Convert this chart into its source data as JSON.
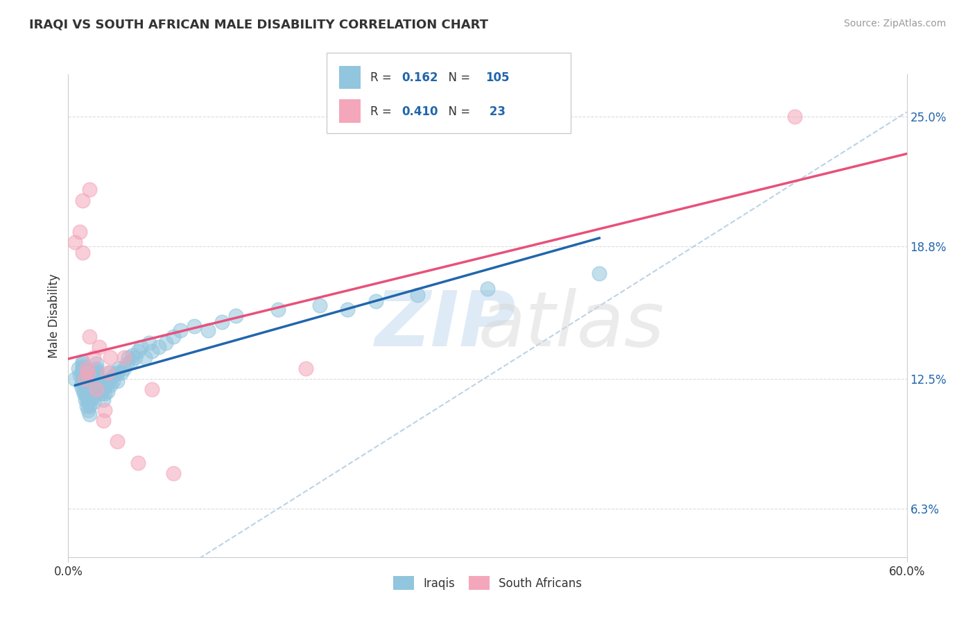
{
  "title": "IRAQI VS SOUTH AFRICAN MALE DISABILITY CORRELATION CHART",
  "source": "Source: ZipAtlas.com",
  "ylabel": "Male Disability",
  "xlim": [
    0.0,
    0.6
  ],
  "ylim": [
    0.04,
    0.27
  ],
  "ytick_labels_right": [
    "6.3%",
    "12.5%",
    "18.8%",
    "25.0%"
  ],
  "ytick_positions_right": [
    0.063,
    0.125,
    0.188,
    0.25
  ],
  "iraqis_color": "#92c5de",
  "south_africans_color": "#f4a6bb",
  "trendline_iraqis_color": "#2166ac",
  "trendline_sa_color": "#e8507a",
  "dashed_line_color": "#aac8e0",
  "iraqis_x": [
    0.005,
    0.007,
    0.008,
    0.009,
    0.01,
    0.01,
    0.01,
    0.01,
    0.01,
    0.01,
    0.01,
    0.01,
    0.01,
    0.01,
    0.01,
    0.011,
    0.011,
    0.012,
    0.012,
    0.012,
    0.012,
    0.012,
    0.013,
    0.013,
    0.013,
    0.014,
    0.014,
    0.014,
    0.015,
    0.015,
    0.015,
    0.015,
    0.015,
    0.015,
    0.015,
    0.016,
    0.016,
    0.016,
    0.016,
    0.017,
    0.017,
    0.018,
    0.018,
    0.018,
    0.019,
    0.02,
    0.02,
    0.02,
    0.02,
    0.02,
    0.02,
    0.02,
    0.02,
    0.02,
    0.02,
    0.022,
    0.022,
    0.023,
    0.023,
    0.025,
    0.025,
    0.026,
    0.027,
    0.028,
    0.028,
    0.03,
    0.03,
    0.03,
    0.032,
    0.033,
    0.035,
    0.035,
    0.036,
    0.038,
    0.04,
    0.042,
    0.043,
    0.045,
    0.046,
    0.048,
    0.05,
    0.052,
    0.055,
    0.058,
    0.06,
    0.065,
    0.07,
    0.075,
    0.08,
    0.09,
    0.1,
    0.11,
    0.12,
    0.15,
    0.18,
    0.2,
    0.22,
    0.25,
    0.3,
    0.38
  ],
  "iraqis_y": [
    0.125,
    0.13,
    0.127,
    0.122,
    0.12,
    0.124,
    0.126,
    0.128,
    0.129,
    0.13,
    0.131,
    0.132,
    0.125,
    0.127,
    0.133,
    0.118,
    0.122,
    0.115,
    0.118,
    0.12,
    0.124,
    0.126,
    0.112,
    0.116,
    0.119,
    0.11,
    0.114,
    0.118,
    0.108,
    0.112,
    0.115,
    0.119,
    0.122,
    0.125,
    0.128,
    0.115,
    0.119,
    0.122,
    0.126,
    0.118,
    0.122,
    0.114,
    0.118,
    0.122,
    0.12,
    0.118,
    0.122,
    0.124,
    0.126,
    0.128,
    0.13,
    0.132,
    0.125,
    0.127,
    0.129,
    0.12,
    0.124,
    0.118,
    0.122,
    0.115,
    0.12,
    0.118,
    0.122,
    0.119,
    0.124,
    0.122,
    0.125,
    0.128,
    0.124,
    0.127,
    0.124,
    0.128,
    0.13,
    0.128,
    0.13,
    0.132,
    0.135,
    0.133,
    0.136,
    0.135,
    0.138,
    0.14,
    0.135,
    0.142,
    0.138,
    0.14,
    0.142,
    0.145,
    0.148,
    0.15,
    0.148,
    0.152,
    0.155,
    0.158,
    0.16,
    0.158,
    0.162,
    0.165,
    0.168,
    0.175
  ],
  "sa_x": [
    0.005,
    0.008,
    0.01,
    0.01,
    0.012,
    0.013,
    0.014,
    0.015,
    0.015,
    0.018,
    0.02,
    0.022,
    0.025,
    0.026,
    0.028,
    0.03,
    0.035,
    0.04,
    0.05,
    0.06,
    0.075,
    0.17,
    0.52
  ],
  "sa_y": [
    0.19,
    0.195,
    0.185,
    0.21,
    0.125,
    0.13,
    0.128,
    0.145,
    0.215,
    0.135,
    0.12,
    0.14,
    0.105,
    0.11,
    0.128,
    0.135,
    0.095,
    0.135,
    0.085,
    0.12,
    0.08,
    0.13,
    0.25
  ]
}
